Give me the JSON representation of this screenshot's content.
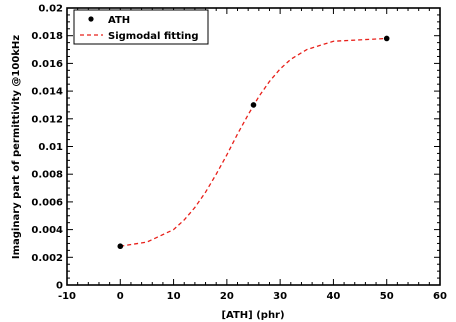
{
  "chart_data": {
    "type": "scatter",
    "title": "",
    "xlabel": "[ATH] (phr)",
    "ylabel": "Imaginary part of permittivity @100kHz",
    "xlim": [
      -10,
      60
    ],
    "ylim": [
      0,
      0.02
    ],
    "xticks": [
      "-10",
      "0",
      "10",
      "20",
      "30",
      "40",
      "50",
      "60"
    ],
    "yticks": [
      "0",
      "0.002",
      "0.004",
      "0.006",
      "0.008",
      "0.01",
      "0.012",
      "0.014",
      "0.016",
      "0.018",
      "0.02"
    ],
    "grid": false,
    "legend_position": "top-left",
    "series": [
      {
        "name": "ATH",
        "kind": "scatter",
        "color": "#000000",
        "x": [
          0,
          25,
          50
        ],
        "y": [
          0.0028,
          0.013,
          0.0178
        ]
      },
      {
        "name": "Sigmodal fitting",
        "kind": "line",
        "style": "dashed",
        "color": "#e8201a",
        "x": [
          0,
          5,
          10,
          12,
          14,
          16,
          18,
          20,
          22,
          24,
          26,
          28,
          30,
          32,
          35,
          40,
          45,
          50
        ],
        "y": [
          0.0028,
          0.0031,
          0.004,
          0.0047,
          0.0056,
          0.0067,
          0.008,
          0.0094,
          0.0109,
          0.0123,
          0.0136,
          0.0147,
          0.0156,
          0.0163,
          0.017,
          0.0176,
          0.0177,
          0.0178
        ]
      }
    ]
  }
}
